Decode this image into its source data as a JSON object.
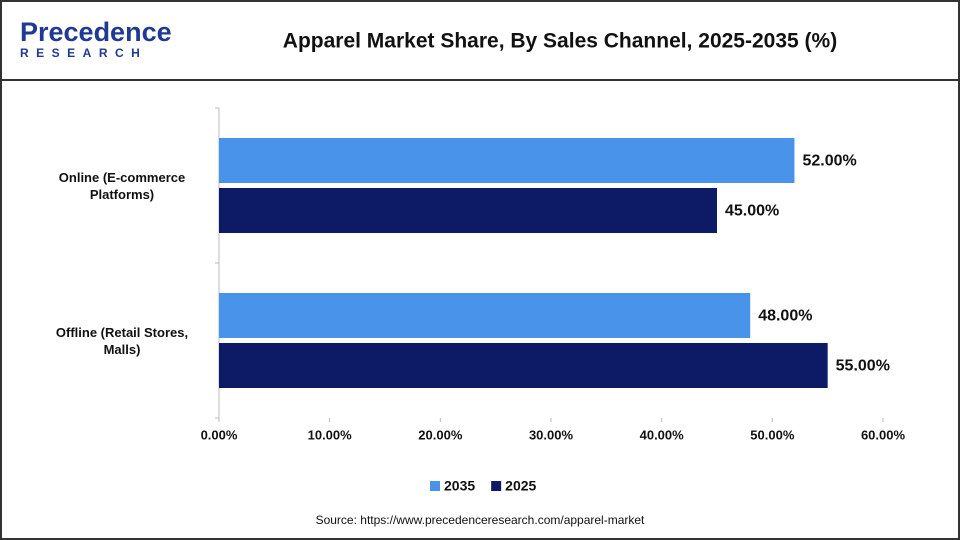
{
  "logo": {
    "name": "Precedence",
    "tagline": "RESEARCH"
  },
  "chart_data": {
    "type": "hbar",
    "title": "Apparel Market Share, By Sales Channel, 2025-2035 (%)",
    "categories": [
      "Online (E-commerce Platforms)",
      "Offline (Retail Stores, Malls)"
    ],
    "series": [
      {
        "name": "2035",
        "color": "#4a93ea",
        "values": [
          52,
          48
        ],
        "value_labels": [
          "52.00%",
          "48.00%"
        ]
      },
      {
        "name": "2025",
        "color": "#0d1a66",
        "values": [
          45,
          55
        ],
        "value_labels": [
          "45.00%",
          "55.00%"
        ]
      }
    ],
    "xlim": [
      0,
      60
    ],
    "xticks": [
      {
        "value": 0,
        "label": "0.00%"
      },
      {
        "value": 10,
        "label": "10.00%"
      },
      {
        "value": 20,
        "label": "20.00%"
      },
      {
        "value": 30,
        "label": "30.00%"
      },
      {
        "value": 40,
        "label": "40.00%"
      },
      {
        "value": 50,
        "label": "50.00%"
      },
      {
        "value": 60,
        "label": "60.00%"
      }
    ],
    "grid": false,
    "legend": "bottom",
    "source": "Source: https://www.precedenceresearch.com/apparel-market"
  }
}
